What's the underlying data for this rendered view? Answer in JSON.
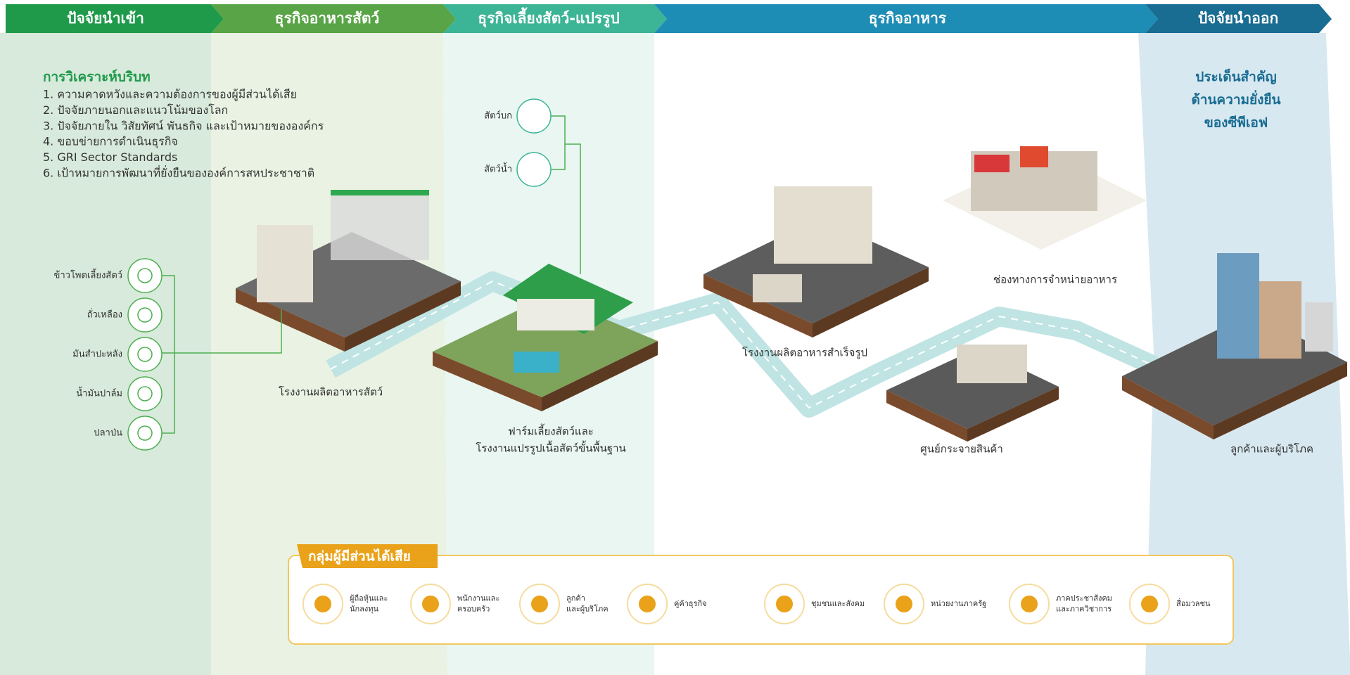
{
  "header": {
    "stages": [
      "ปัจจัยนำเข้า",
      "ธุรกิจอาหารสัตว์",
      "ธุรกิจเลี้ยงสัตว์-แปรรูป",
      "ธุรกิจอาหาร",
      "ปัจจัยนำออก"
    ]
  },
  "context": {
    "title": "การวิเคราะห์บริบท",
    "items": [
      "1. ความคาดหวังและความต้องการของผู้มีส่วนได้เสีย",
      "2. ปัจจัยภายนอกและแนวโน้มของโลก",
      "3. ปัจจัยภายใน วิสัยทัศน์ พันธกิจ และเป้าหมายขององค์กร",
      "4. ขอบข่ายการดำเนินธุรกิจ",
      "5. GRI Sector Standards",
      "6. เป้าหมายการพัฒนาที่ยั่งยืนขององค์การสหประชาชาติ"
    ]
  },
  "inputs": [
    "ข้าวโพดเลี้ยงสัตว์",
    "ถั่วเหลือง",
    "มันสำปะหลัง",
    "น้ำมันปาล์ม",
    "ปลาป่น"
  ],
  "animals": [
    "สัตว์บก",
    "สัตว์น้ำ"
  ],
  "nodes": {
    "feed_mill": "โรงงานผลิตอาหารสัตว์",
    "farm": [
      "ฟาร์มเลี้ยงสัตว์และ",
      "โรงงานแปรรูปเนื้อสัตว์ขั้นพื้นฐาน"
    ],
    "food_plant": "โรงงานผลิตอาหารสำเร็จรูป",
    "retail": "ช่องทางการจำหน่ายอาหาร",
    "distribution": "ศูนย์กระจายสินค้า",
    "consumers": "ลูกค้าและผู้บริโภค"
  },
  "key_issues": [
    "ประเด็นสำคัญ",
    "ด้านความยั่งยืน",
    "ของซีพีเอฟ"
  ],
  "stakeholders": {
    "title": "กลุ่มผู้มีส่วนได้เสีย",
    "groups": [
      [
        "ผู้ถือหุ้นและ",
        "นักลงทุน"
      ],
      [
        "พนักงานและ",
        "ครอบครัว"
      ],
      [
        "ลูกค้า",
        "และผู้บริโภค"
      ],
      [
        "คู่ค้าธุรกิจ"
      ],
      [
        "ชุมชนและสังคม"
      ],
      [
        "หน่วยงานภาครัฐ"
      ],
      [
        "ภาคประชาสังคม",
        "และภาควิชาการ"
      ],
      [
        "สื่อมวลชน"
      ]
    ]
  }
}
